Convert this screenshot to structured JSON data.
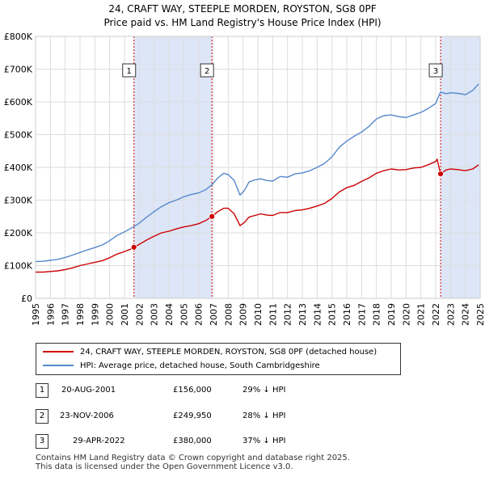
{
  "chart_data": {
    "type": "line",
    "title": "24, CRAFT WAY, STEEPLE MORDEN, ROYSTON, SG8 0PF",
    "subtitle": "Price paid vs. HM Land Registry's House Price Index (HPI)",
    "xlim": [
      1995,
      2025
    ],
    "ylim": [
      0,
      800000
    ],
    "y_ticks": [
      {
        "value": 0,
        "label": "£0"
      },
      {
        "value": 100000,
        "label": "£100K"
      },
      {
        "value": 200000,
        "label": "£200K"
      },
      {
        "value": 300000,
        "label": "£300K"
      },
      {
        "value": 400000,
        "label": "£400K"
      },
      {
        "value": 500000,
        "label": "£500K"
      },
      {
        "value": 600000,
        "label": "£600K"
      },
      {
        "value": 700000,
        "label": "£700K"
      },
      {
        "value": 800000,
        "label": "£800K"
      }
    ],
    "x_ticks": [
      "1995",
      "1996",
      "1997",
      "1998",
      "1999",
      "2000",
      "2001",
      "2002",
      "2003",
      "2004",
      "2005",
      "2006",
      "2007",
      "2008",
      "2009",
      "2010",
      "2011",
      "2012",
      "2013",
      "2014",
      "2015",
      "2016",
      "2017",
      "2018",
      "2019",
      "2020",
      "2021",
      "2022",
      "2023",
      "2024",
      "2025"
    ],
    "grid": true,
    "series": [
      {
        "name": "24, CRAFT WAY, STEEPLE MORDEN, ROYSTON, SG8 0PF (detached house)",
        "color": "#cc0000",
        "x": [
          1995.0,
          1995.5,
          1996.0,
          1996.5,
          1997.0,
          1997.5,
          1998.0,
          1998.5,
          1999.0,
          1999.5,
          2000.0,
          2000.5,
          2001.0,
          2001.4,
          2001.64,
          2002.0,
          2002.5,
          2003.0,
          2003.5,
          2004.0,
          2004.5,
          2005.0,
          2005.5,
          2006.0,
          2006.5,
          2006.9,
          2007.3,
          2007.7,
          2008.0,
          2008.4,
          2008.8,
          2009.1,
          2009.4,
          2009.8,
          2010.2,
          2010.6,
          2011.0,
          2011.5,
          2012.0,
          2012.5,
          2013.0,
          2013.5,
          2014.0,
          2014.5,
          2015.0,
          2015.5,
          2016.0,
          2016.5,
          2017.0,
          2017.5,
          2018.0,
          2018.5,
          2019.0,
          2019.5,
          2020.0,
          2020.5,
          2021.0,
          2021.5,
          2022.0,
          2022.1,
          2022.33,
          2022.7,
          2023.0,
          2023.5,
          2024.0,
          2024.5,
          2024.9
        ],
        "values": [
          80000,
          80000,
          82000,
          84000,
          88000,
          93000,
          100000,
          105000,
          110000,
          115000,
          124000,
          135000,
          143000,
          150000,
          156000,
          165000,
          178000,
          190000,
          200000,
          205000,
          212000,
          218000,
          222000,
          228000,
          238000,
          249950,
          265000,
          275000,
          275000,
          258000,
          222000,
          232000,
          248000,
          253000,
          258000,
          254000,
          253000,
          262000,
          262000,
          268000,
          270000,
          275000,
          282000,
          290000,
          305000,
          325000,
          338000,
          345000,
          357000,
          368000,
          382000,
          390000,
          395000,
          392000,
          393000,
          398000,
          400000,
          408000,
          418000,
          425000,
          380000,
          392000,
          395000,
          393000,
          390000,
          395000,
          408000
        ]
      },
      {
        "name": "HPI: Average price, detached house, South Cambridgeshire",
        "color": "#5588cc",
        "x": [
          1995.0,
          1995.5,
          1996.0,
          1996.5,
          1997.0,
          1997.5,
          1998.0,
          1998.5,
          1999.0,
          1999.5,
          2000.0,
          2000.5,
          2001.0,
          2001.64,
          2002.0,
          2002.5,
          2003.0,
          2003.5,
          2004.0,
          2004.5,
          2005.0,
          2005.5,
          2006.0,
          2006.5,
          2006.9,
          2007.3,
          2007.7,
          2008.0,
          2008.4,
          2008.8,
          2009.1,
          2009.4,
          2009.8,
          2010.2,
          2010.6,
          2011.0,
          2011.5,
          2012.0,
          2012.5,
          2013.0,
          2013.5,
          2014.0,
          2014.5,
          2015.0,
          2015.5,
          2016.0,
          2016.5,
          2017.0,
          2017.5,
          2018.0,
          2018.5,
          2019.0,
          2019.5,
          2020.0,
          2020.5,
          2021.0,
          2021.5,
          2022.0,
          2022.33,
          2022.7,
          2023.0,
          2023.5,
          2024.0,
          2024.5,
          2024.9
        ],
        "values": [
          112000,
          113000,
          116000,
          119000,
          125000,
          132000,
          140000,
          148000,
          155000,
          163000,
          176000,
          192000,
          203000,
          219000,
          230000,
          248000,
          265000,
          280000,
          292000,
          300000,
          310000,
          317000,
          322000,
          332000,
          347000,
          368000,
          382000,
          378000,
          360000,
          315000,
          330000,
          355000,
          362000,
          365000,
          360000,
          358000,
          372000,
          370000,
          380000,
          383000,
          390000,
          400000,
          412000,
          432000,
          462000,
          480000,
          495000,
          508000,
          525000,
          548000,
          558000,
          560000,
          555000,
          552000,
          560000,
          568000,
          580000,
          595000,
          630000,
          625000,
          628000,
          626000,
          622000,
          635000,
          655000
        ]
      }
    ],
    "sales": [
      {
        "id": "1",
        "x": 2001.64,
        "value": 156000
      },
      {
        "id": "2",
        "x": 2006.9,
        "value": 249950
      },
      {
        "id": "3",
        "x": 2022.33,
        "value": 380000
      }
    ],
    "shaded_ranges": [
      [
        2001.64,
        2006.9
      ],
      [
        2022.33,
        2025
      ]
    ]
  },
  "legend": {
    "property_label": "24, CRAFT WAY, STEEPLE MORDEN, ROYSTON, SG8 0PF (detached house)",
    "hpi_label": "HPI: Average price, detached house, South Cambridgeshire"
  },
  "sales_table": [
    {
      "num": "1",
      "date": "20-AUG-2001",
      "price": "£156,000",
      "hpi": "29% ↓ HPI"
    },
    {
      "num": "2",
      "date": "23-NOV-2006",
      "price": "£249,950",
      "hpi": "28% ↓ HPI"
    },
    {
      "num": "3",
      "date": "29-APR-2022",
      "price": "£380,000",
      "hpi": "37% ↓ HPI"
    }
  ],
  "footer": {
    "line1": "Contains HM Land Registry data © Crown copyright and database right 2025.",
    "line2": "This data is licensed under the Open Government Licence v3.0."
  }
}
